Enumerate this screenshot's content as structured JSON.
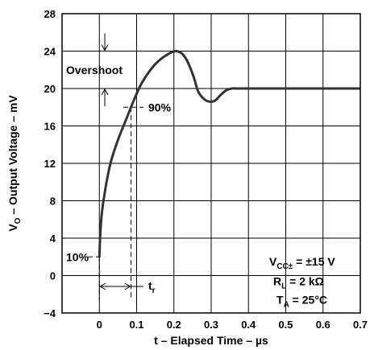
{
  "chart_data": {
    "type": "line",
    "xlabel": "t – Elapsed Time – µs",
    "ylabel_main": "V",
    "ylabel_sub": "O",
    "ylabel_rest": " – Output Voltage – mV",
    "xlim": [
      -0.1,
      0.7
    ],
    "ylim": [
      -4,
      28
    ],
    "x_ticks": [
      0,
      0.1,
      0.2,
      0.3,
      0.4,
      0.5,
      0.6,
      0.7
    ],
    "x_tick_labels": [
      "0",
      "0.1",
      "0.2",
      "0.3",
      "0.4",
      "0.5",
      "0.6",
      "0.7"
    ],
    "y_ticks": [
      -4,
      0,
      4,
      8,
      12,
      16,
      20,
      24,
      28
    ],
    "y_tick_labels": [
      "−4",
      "0",
      "4",
      "8",
      "12",
      "16",
      "20",
      "24",
      "28"
    ],
    "grid": true,
    "series": [
      {
        "x": [
          0.0,
          0.005,
          0.015,
          0.03,
          0.05,
          0.07,
          0.09,
          0.11,
          0.13,
          0.15,
          0.17,
          0.19,
          0.205,
          0.215,
          0.225,
          0.235,
          0.245,
          0.255,
          0.265,
          0.28,
          0.295,
          0.31,
          0.325,
          0.34,
          0.355,
          0.37,
          0.4,
          0.5,
          0.6,
          0.7
        ],
        "y": [
          2.0,
          6.0,
          9.0,
          12.0,
          14.5,
          16.5,
          18.5,
          20.3,
          21.6,
          22.6,
          23.3,
          23.8,
          24.0,
          23.9,
          23.6,
          23.0,
          22.1,
          21.0,
          19.7,
          18.9,
          18.6,
          18.7,
          19.3,
          19.8,
          20.0,
          20.0,
          20.0,
          20.0,
          20.0,
          20.0
        ]
      }
    ],
    "annotations": {
      "overshoot": "Overshoot",
      "ninety": "90%",
      "ten": "10%",
      "tr_main": "t",
      "tr_sub": "r",
      "cond_vcc_main": "V",
      "cond_vcc_sub": "CC±",
      "cond_vcc_rest": " = ±15 V",
      "cond_rl_main": "R",
      "cond_rl_sub": "L",
      "cond_rl_rest": " =  2 kΩ",
      "cond_ta_main": "T",
      "cond_ta_sub": "A",
      "cond_ta_rest": " = 25°C"
    },
    "markers": {
      "overshoot_top": 24,
      "overshoot_bottom": 20,
      "ninety_y": 18,
      "ninety_x": 0.085,
      "ten_y": 2,
      "start_x": 0
    },
    "colors": {
      "curve": "#333333",
      "grid": "#000000"
    }
  }
}
